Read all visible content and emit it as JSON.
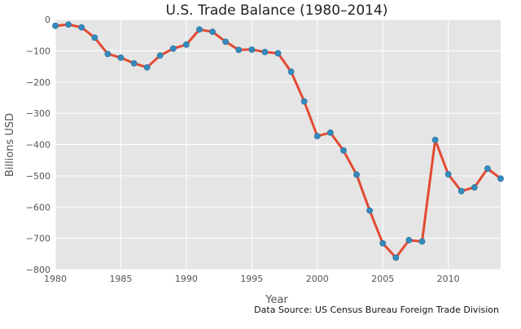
{
  "chart_data": {
    "type": "line",
    "title": "U.S. Trade Balance (1980–2014)",
    "xlabel": "Year",
    "ylabel": "Billions USD",
    "xlim": [
      1980,
      2014
    ],
    "ylim": [
      -800,
      0
    ],
    "xticks": [
      1980,
      1985,
      1990,
      1995,
      2000,
      2005,
      2010
    ],
    "yticks": [
      0,
      -100,
      -200,
      -300,
      -400,
      -500,
      -600,
      -700,
      -800
    ],
    "grid": true,
    "background_color": "#e5e5e5",
    "line_color": "#e24a33",
    "marker_color": "#348abd",
    "source_note": "Data Source: US Census Bureau Foreign Trade Division",
    "series": [
      {
        "x": [
          1980,
          1981,
          1982,
          1983,
          1984,
          1985,
          1986,
          1987,
          1988,
          1989,
          1990,
          1991,
          1992,
          1993,
          1994,
          1995,
          1996,
          1997,
          1998,
          1999,
          2000,
          2001,
          2002,
          2003,
          2004,
          2005,
          2006,
          2007,
          2008,
          2009,
          2010,
          2011,
          2012,
          2013,
          2014
        ],
        "values": [
          -20,
          -16,
          -25,
          -58,
          -110,
          -122,
          -140,
          -153,
          -115,
          -93,
          -80,
          -32,
          -39,
          -71,
          -97,
          -96,
          -104,
          -108,
          -167,
          -262,
          -373,
          -362,
          -419,
          -496,
          -611,
          -716,
          -762,
          -706,
          -710,
          -385,
          -495,
          -549,
          -537,
          -477,
          -509
        ]
      }
    ]
  }
}
